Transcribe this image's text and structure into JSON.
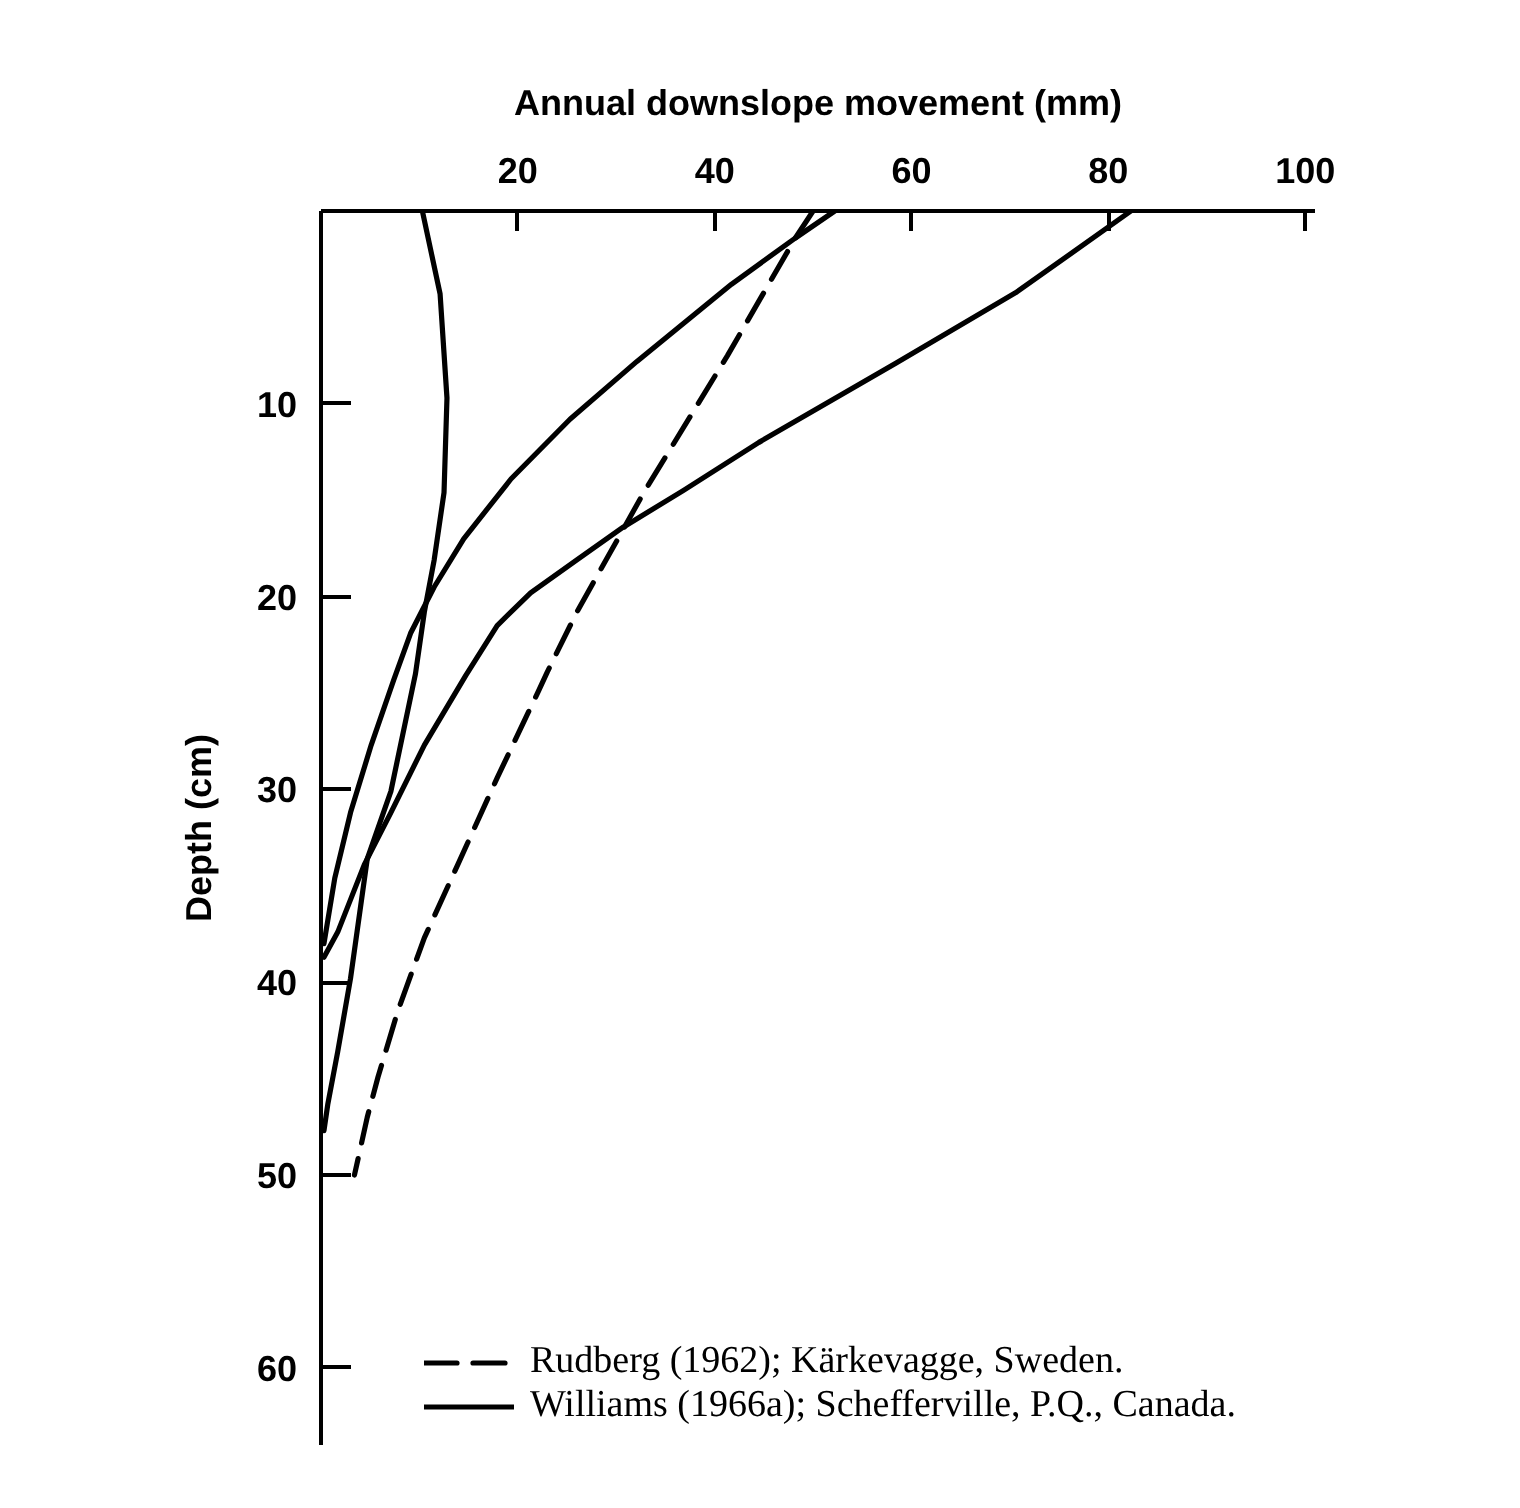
{
  "chart_data": {
    "type": "line",
    "xlabel": "Annual downslope movement (mm)",
    "ylabel": "Depth (cm)",
    "xlim": [
      0,
      101
    ],
    "xticks": [
      20,
      40,
      60,
      80,
      100
    ],
    "ylim": [
      64,
      0
    ],
    "yticks": [
      10,
      20,
      30,
      40,
      50,
      60
    ],
    "legend": "bottom left",
    "line_style": "solid",
    "series": [
      {
        "name": "Rudberg (1962); Kärkevagge, Sweden.",
        "color": "#000000",
        "line_style": "dashed",
        "x": [
          50,
          48.2,
          41.3,
          32.8,
          29.4,
          26.0,
          23.0,
          22.0,
          17.9,
          13.9,
          10.5,
          7.8,
          5.8,
          4.7,
          3.4
        ],
        "values": [
          0,
          1.4,
          7.5,
          14.6,
          17.7,
          20.8,
          23.9,
          25.0,
          29.4,
          33.9,
          37.7,
          41.5,
          44.9,
          47.0,
          50
        ]
      },
      {
        "name": "Williams (1966a); Schefferville, P.Q., Canada.",
        "color": "#000000",
        "x": [
          82.3,
          70.7,
          58.4,
          44.5,
          36.8,
          30.7,
          26.0,
          21.3,
          17.9,
          14.7,
          10.5,
          7.1,
          4.4,
          1.7,
          0.3
        ],
        "values": [
          0,
          4.2,
          7.9,
          12,
          14.5,
          16.4,
          18.1,
          19.8,
          21.5,
          24.1,
          27.7,
          31.2,
          33.9,
          37.4,
          38.7
        ]
      },
      {
        "color": "#000000",
        "x": [
          52.2,
          48.2,
          41.7,
          32.1,
          25.3,
          19.3,
          14.5,
          11.5,
          9.1,
          7.4,
          5.1,
          3.0,
          1.4,
          0.3
        ],
        "values": [
          0,
          1.4,
          3.8,
          7.8,
          10.8,
          13.9,
          17.0,
          19.5,
          21.9,
          24.3,
          27.7,
          31.2,
          34.6,
          38.0
        ]
      },
      {
        "color": "#000000",
        "x": [
          10.3,
          12.1,
          12.8,
          12.5,
          11.5,
          10.5,
          9.6,
          7.1,
          4.7,
          3.0,
          1.7,
          0.7,
          0.3
        ],
        "values": [
          0,
          4.3,
          9.7,
          14.6,
          18.1,
          20.8,
          24,
          30.1,
          33.6,
          39.8,
          43.6,
          46.3,
          47.7
        ]
      }
    ]
  }
}
